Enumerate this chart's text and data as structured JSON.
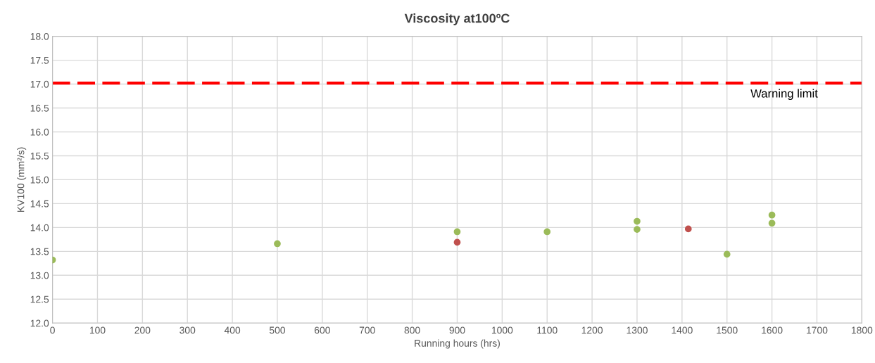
{
  "chart_data": {
    "type": "scatter",
    "title": "Viscosity at100ºC",
    "xlabel": "Running hours (hrs)",
    "ylabel": "KV100 (mm²/s)",
    "series": [
      {
        "color": "#c0504d",
        "x": [
          900,
          1414
        ],
        "values": [
          13.69,
          13.97
        ]
      },
      {
        "color": "#9bbb59",
        "x": [
          0,
          500,
          900,
          1100,
          1300,
          1300,
          1500,
          1600,
          1600
        ],
        "values": [
          13.32,
          13.66,
          13.91,
          13.91,
          14.13,
          13.96,
          13.44,
          14.26,
          14.09
        ]
      }
    ],
    "xlim": [
      0,
      1800
    ],
    "xticks": [
      0,
      100,
      200,
      300,
      400,
      500,
      600,
      700,
      800,
      900,
      1000,
      1100,
      1200,
      1300,
      1400,
      1500,
      1600,
      1700,
      1800
    ],
    "ylim": [
      12,
      18
    ],
    "yticks": [
      {
        "value": 12,
        "label": "12.0"
      },
      {
        "value": 12.5,
        "label": "12.5"
      },
      {
        "value": 13,
        "label": "13.0"
      },
      {
        "value": 13.5,
        "label": "13.5"
      },
      {
        "value": 14,
        "label": "14.0"
      },
      {
        "value": 14.5,
        "label": "14.5"
      },
      {
        "value": 15,
        "label": "15.0"
      },
      {
        "value": 15.5,
        "label": "15.5"
      },
      {
        "value": 16,
        "label": "16.0"
      },
      {
        "value": 16.5,
        "label": "16.5"
      },
      {
        "value": 17,
        "label": "17.0"
      },
      {
        "value": 17.5,
        "label": "17.5"
      },
      {
        "value": 18,
        "label": "18.0"
      }
    ],
    "ref_lines": [
      {
        "axis": "y",
        "value": 17.02,
        "label": "Warning limit",
        "color": "#ff0000",
        "line_style": "dashed"
      }
    ],
    "grid": true,
    "marker": "circle"
  }
}
